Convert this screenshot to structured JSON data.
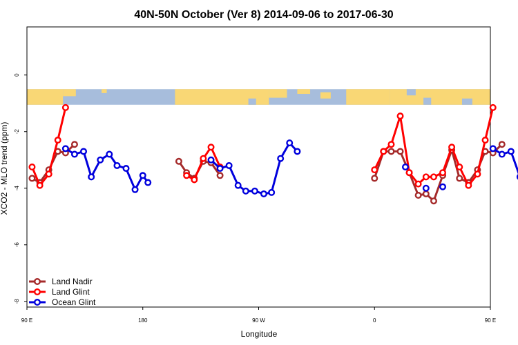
{
  "chart_data": {
    "type": "line",
    "title": "40N-50N October (Ver 8)   2014-09-06 to 2017-06-30",
    "xlabel": "Longitude",
    "ylabel": "XCO2 - MLO trend (ppm)",
    "xlim": [
      90,
      450
    ],
    "ylim": [
      -8.2,
      1.7
    ],
    "x_ticks": [
      {
        "value": 90,
        "label": "90 E"
      },
      {
        "value": 180,
        "label": "180"
      },
      {
        "value": 270,
        "label": "90 W"
      },
      {
        "value": 360,
        "label": "0"
      },
      {
        "value": 450,
        "label": "90 E"
      },
      {
        "value": 540,
        "label": "180"
      }
    ],
    "y_ticks": [
      {
        "value": 0,
        "label": "0"
      },
      {
        "value": -2,
        "label": "-2"
      },
      {
        "value": -4,
        "label": "-4"
      },
      {
        "value": -6,
        "label": "-6"
      },
      {
        "value": -8,
        "label": "-8"
      }
    ],
    "map_band": {
      "y_top": -0.5,
      "y_bottom": -1.05
    },
    "legend_position": "bottom-left",
    "grid": false,
    "series": [
      {
        "name": "Land Nadir",
        "color": "#a52a2a",
        "segments": [
          [
            [
              94,
              -3.65
            ],
            [
              100,
              -3.8
            ],
            [
              107,
              -3.35
            ],
            [
              114,
              -2.7
            ],
            [
              120,
              -2.75
            ],
            [
              127,
              -2.45
            ]
          ],
          [
            [
              208,
              -3.05
            ],
            [
              214,
              -3.45
            ],
            [
              220,
              -3.65
            ],
            [
              227,
              -3.05
            ],
            [
              233,
              -3.1
            ],
            [
              240,
              -3.55
            ]
          ],
          [
            [
              360,
              -3.65
            ],
            [
              367,
              -2.7
            ],
            [
              373,
              -2.7
            ],
            [
              380,
              -2.7
            ],
            [
              387,
              -3.45
            ],
            [
              394,
              -4.25
            ],
            [
              400,
              -4.2
            ],
            [
              406,
              -4.45
            ],
            [
              413,
              -3.55
            ],
            [
              420,
              -2.65
            ],
            [
              426,
              -3.65
            ],
            [
              433,
              -3.8
            ],
            [
              440,
              -3.35
            ],
            [
              446,
              -2.7
            ],
            [
              452,
              -2.75
            ],
            [
              459,
              -2.45
            ]
          ]
        ]
      },
      {
        "name": "Land Glint",
        "color": "#ff0000",
        "segments": [
          [
            [
              94,
              -3.25
            ],
            [
              100,
              -3.9
            ],
            [
              107,
              -3.5
            ],
            [
              114,
              -2.3
            ],
            [
              120,
              -1.15
            ]
          ],
          [
            [
              214,
              -3.55
            ],
            [
              220,
              -3.7
            ],
            [
              227,
              -2.95
            ],
            [
              233,
              -2.55
            ],
            [
              240,
              -3.25
            ]
          ],
          [
            [
              360,
              -3.35
            ],
            [
              367,
              -2.7
            ],
            [
              373,
              -2.45
            ],
            [
              380,
              -1.45
            ],
            [
              387,
              -3.45
            ],
            [
              394,
              -3.85
            ],
            [
              400,
              -3.6
            ],
            [
              406,
              -3.6
            ],
            [
              413,
              -3.45
            ],
            [
              420,
              -2.55
            ],
            [
              426,
              -3.25
            ],
            [
              433,
              -3.9
            ],
            [
              440,
              -3.5
            ],
            [
              446,
              -2.3
            ],
            [
              452,
              -1.15
            ]
          ]
        ]
      },
      {
        "name": "Ocean Glint",
        "color": "#0000dd",
        "segments": [
          [
            [
              120,
              -2.6
            ],
            [
              127,
              -2.8
            ],
            [
              134,
              -2.7
            ],
            [
              140,
              -3.6
            ],
            [
              147,
              -3.0
            ],
            [
              154,
              -2.8
            ],
            [
              160,
              -3.2
            ],
            [
              167,
              -3.3
            ],
            [
              174,
              -4.05
            ],
            [
              180,
              -3.55
            ],
            [
              184,
              -3.8
            ]
          ],
          [
            [
              233,
              -3.0
            ],
            [
              240,
              -3.3
            ],
            [
              247,
              -3.2
            ],
            [
              254,
              -3.9
            ],
            [
              260,
              -4.1
            ],
            [
              267,
              -4.1
            ],
            [
              274,
              -4.2
            ],
            [
              280,
              -4.15
            ],
            [
              287,
              -2.95
            ],
            [
              294,
              -2.4
            ],
            [
              300,
              -2.7
            ]
          ],
          [
            [
              384,
              -3.25
            ]
          ],
          [
            [
              400,
              -4.0
            ]
          ],
          [
            [
              413,
              -3.95
            ]
          ],
          [
            [
              452,
              -2.6
            ],
            [
              459,
              -2.8
            ],
            [
              466,
              -2.7
            ],
            [
              473,
              -3.6
            ],
            [
              480,
              -3.0
            ]
          ]
        ]
      }
    ]
  }
}
